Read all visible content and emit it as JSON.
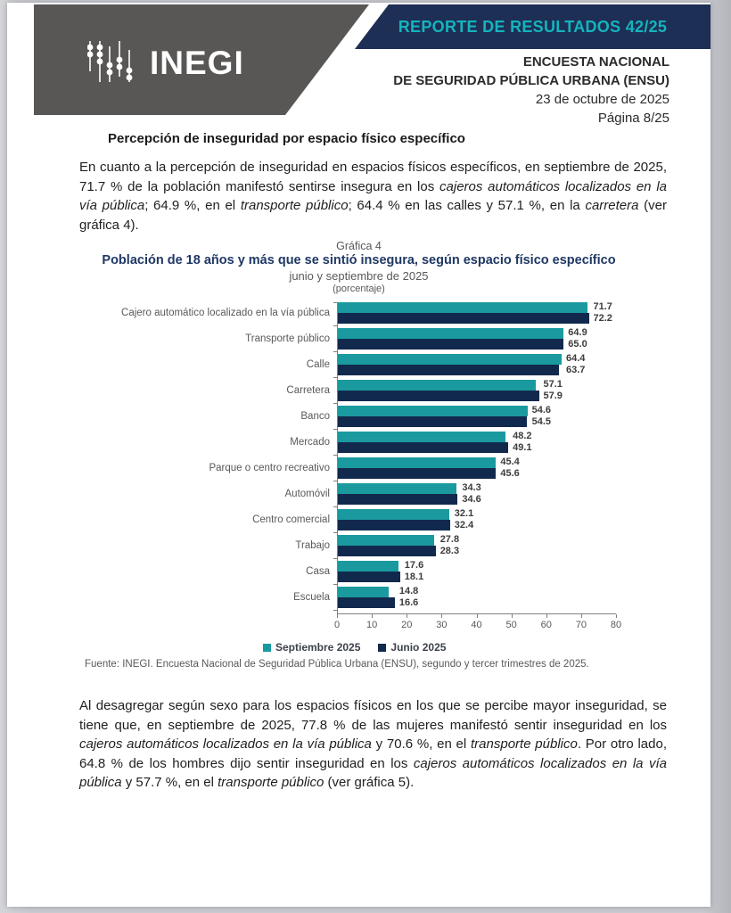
{
  "header": {
    "banner_label": "REPORTE DE RESULTADOS 42/25",
    "banner_bg": "#1e2f55",
    "banner_fg": "#14b4bd",
    "logo_text": "INEGI",
    "logo_bg": "#585755",
    "right_lines": [
      "ENCUESTA NACIONAL",
      "DE SEGURIDAD PÚBLICA URBANA (ENSU)",
      "23 de octubre de 2025",
      "Página 8/25"
    ]
  },
  "section_title": "Percepción de inseguridad por espacio físico específico",
  "paragraphs": {
    "p1": [
      {
        "t": "En cuanto a la percepción de inseguridad en espacios físicos específicos, en septiembre de 2025, 71.7 % de la población manifestó sentirse insegura en los ",
        "i": false
      },
      {
        "t": "cajeros automáticos localizados en la vía pública",
        "i": true
      },
      {
        "t": "; 64.9 %, en el ",
        "i": false
      },
      {
        "t": "transporte público",
        "i": true
      },
      {
        "t": "; 64.4 % en las calles y 57.1 %, en la ",
        "i": false
      },
      {
        "t": "carretera",
        "i": true
      },
      {
        "t": " (ver gráfica 4).",
        "i": false
      }
    ],
    "p2": [
      {
        "t": "Al desagregar según sexo para los espacios físicos en los que se percibe mayor inseguridad, se tiene que, en septiembre de 2025, 77.8 % de las mujeres manifestó sentir inseguridad en los ",
        "i": false
      },
      {
        "t": "cajeros automáticos localizados en la vía pública",
        "i": true
      },
      {
        "t": " y 70.6 %, en el ",
        "i": false
      },
      {
        "t": "transporte público",
        "i": true
      },
      {
        "t": ". Por otro lado, 64.8 % de los hombres dijo sentir inseguridad en los ",
        "i": false
      },
      {
        "t": "cajeros automáticos localizados en la vía pública",
        "i": true
      },
      {
        "t": " y 57.7 %, en el ",
        "i": false
      },
      {
        "t": "transporte público",
        "i": true
      },
      {
        "t": " (ver gráfica 5).",
        "i": false
      }
    ]
  },
  "source_note": "Fuente: INEGI. Encuesta Nacional de Seguridad Pública Urbana (ENSU), segundo y tercer trimestres de 2025.",
  "chart_data": {
    "type": "bar",
    "orientation": "horizontal",
    "title_line1": "Gráfica 4",
    "title": "Población de 18 años y más que se sintió insegura, según espacio físico específico",
    "subtitle": "junio y septiembre de 2025",
    "unit_note": "(porcentaje)",
    "categories": [
      "Cajero automático localizado en la vía pública",
      "Transporte público",
      "Calle",
      "Carretera",
      "Banco",
      "Mercado",
      "Parque o centro recreativo",
      "Automóvil",
      "Centro comercial",
      "Trabajo",
      "Casa",
      "Escuela"
    ],
    "series": [
      {
        "name": "Septiembre 2025",
        "color": "#1a9a9e",
        "values": [
          71.7,
          64.9,
          64.4,
          57.1,
          54.6,
          48.2,
          45.4,
          34.3,
          32.1,
          27.8,
          17.6,
          14.8
        ]
      },
      {
        "name": "Junio 2025",
        "color": "#12294e",
        "values": [
          72.2,
          65.0,
          63.7,
          57.9,
          54.5,
          49.1,
          45.6,
          34.6,
          32.4,
          28.3,
          18.1,
          16.6
        ]
      }
    ],
    "xlim": [
      0,
      80
    ],
    "x_ticks": [
      0,
      10,
      20,
      30,
      40,
      50,
      60,
      70,
      80
    ],
    "grid": false,
    "legend_position": "bottom",
    "value_labels": true
  }
}
